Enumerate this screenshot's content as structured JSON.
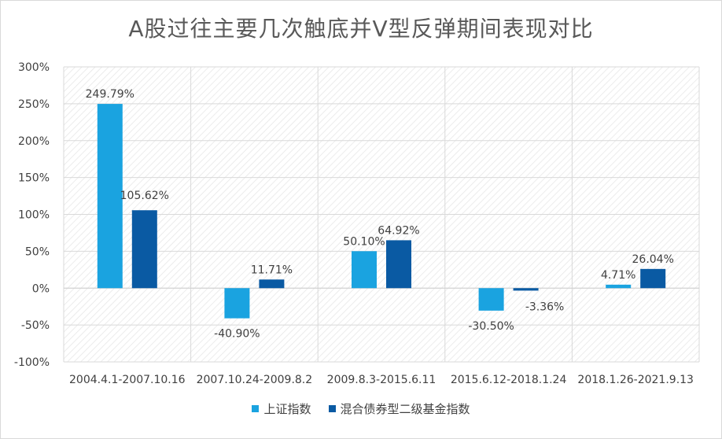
{
  "chart_data": {
    "type": "bar",
    "title": "A股过往主要几次触底并V型反弹期间表现对比",
    "categories": [
      "2004.4.1-2007.10.16",
      "2007.10.24-2009.8.2",
      "2009.8.3-2015.6.11",
      "2015.6.12-2018.1.24",
      "2018.1.26-2021.9.13"
    ],
    "series": [
      {
        "name": "上证指数",
        "color": "#1aa3e0",
        "values": [
          249.79,
          -40.9,
          50.1,
          -30.5,
          4.71
        ],
        "labels": [
          "249.79%",
          "-40.90%",
          "50.10%",
          "-30.50%",
          "4.71%"
        ]
      },
      {
        "name": "混合债券型二级基金指数",
        "color": "#0a5aa3",
        "values": [
          105.62,
          11.71,
          64.92,
          -3.36,
          26.04
        ],
        "labels": [
          "105.62%",
          "11.71%",
          "64.92%",
          "-3.36%",
          "26.04%"
        ]
      }
    ],
    "ylim": [
      -100,
      300
    ],
    "yticks": [
      "300%",
      "250%",
      "200%",
      "150%",
      "100%",
      "50%",
      "0%",
      "-50%",
      "-100%"
    ],
    "ytick_values": [
      300,
      250,
      200,
      150,
      100,
      50,
      0,
      -50,
      -100
    ],
    "xlabel": "",
    "ylabel": "",
    "grid": true,
    "legend_position": "bottom"
  }
}
